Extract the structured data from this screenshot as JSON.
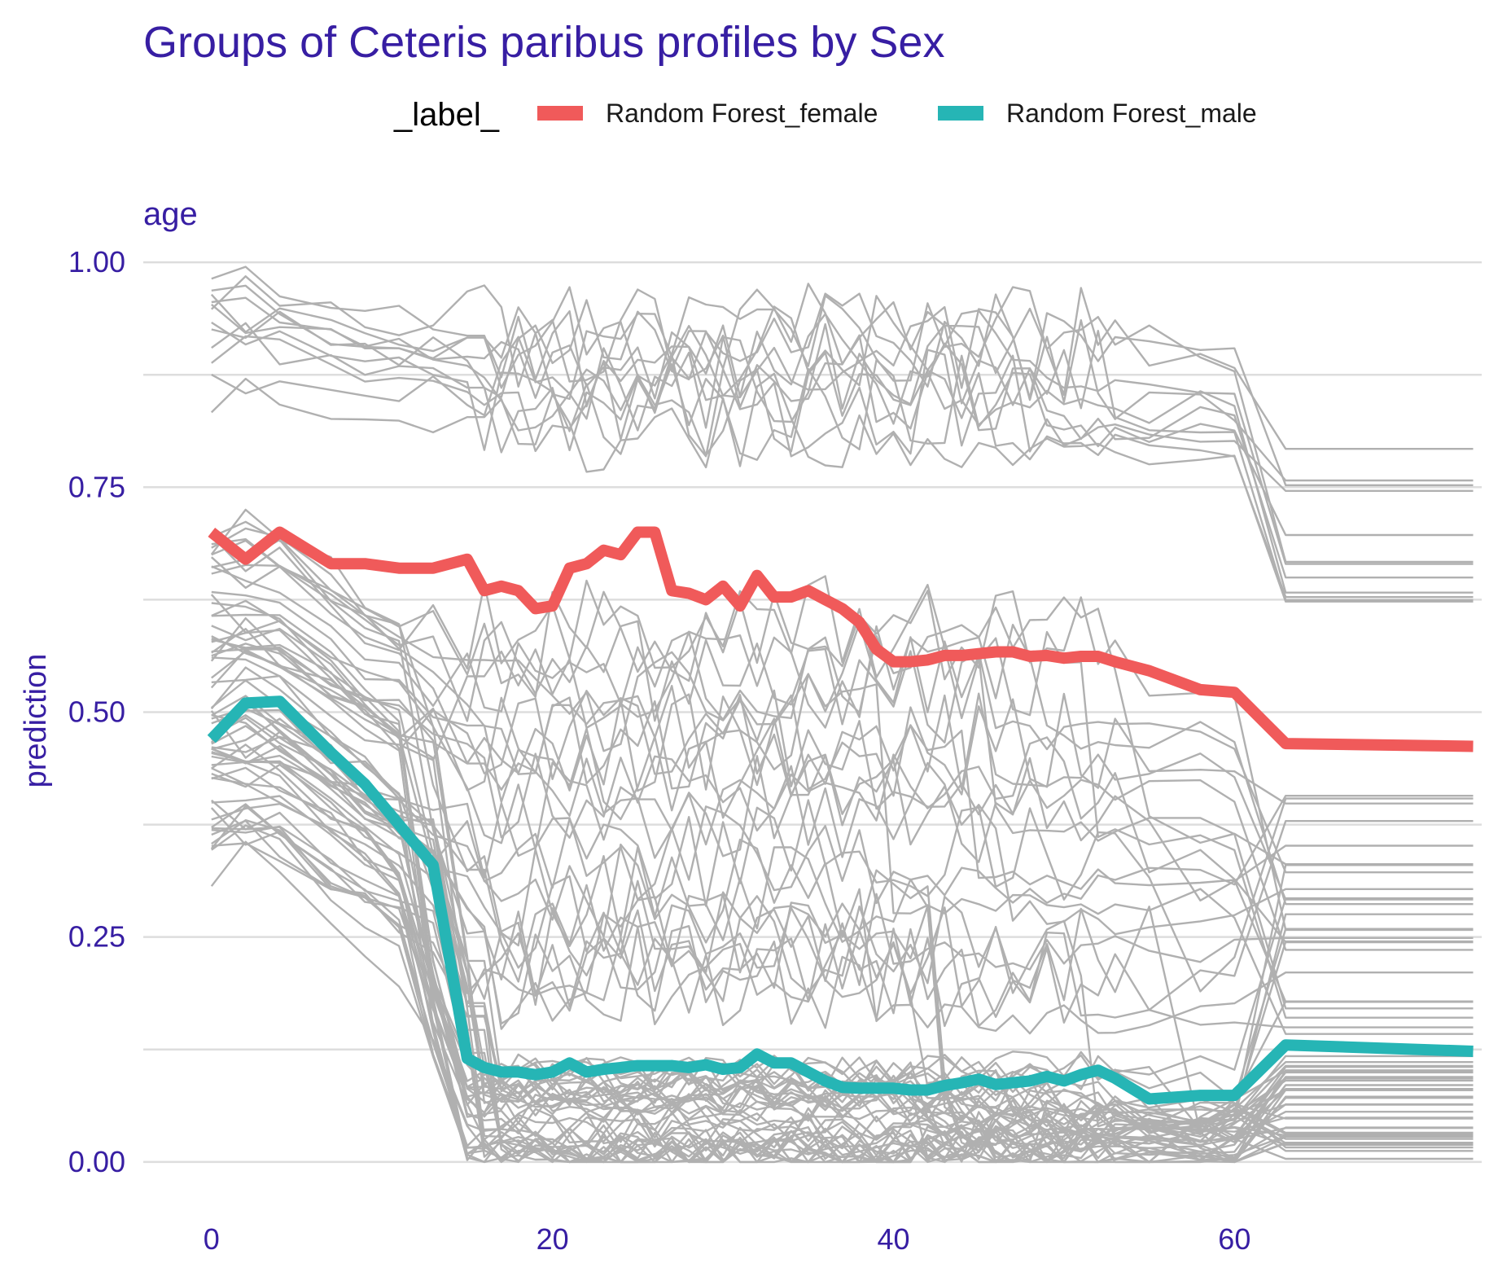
{
  "chart_data": {
    "type": "line",
    "title": "Groups of Ceteris paribus profiles by Sex",
    "facet_label": "age",
    "xlabel": "",
    "ylabel": "prediction",
    "legend": {
      "title": "_label_",
      "placement": "top",
      "entries": [
        "Random Forest_female",
        "Random Forest_male"
      ]
    },
    "xlim": [
      -4,
      74.5
    ],
    "ylim": [
      -0.03,
      1.02
    ],
    "xticks": [
      0,
      20,
      40,
      60
    ],
    "yticks": [
      0.0,
      0.25,
      0.5,
      0.75,
      1.0
    ],
    "ytick_labels": [
      "0.00",
      "0.25",
      "0.50",
      "0.75",
      "1.00"
    ],
    "grid": true,
    "colors": {
      "title": "#371ea3",
      "axis_text": "#371ea3",
      "grid": "#dddddd",
      "background_profiles": "#b0b0b0",
      "female": "#f05a5a",
      "male": "#26b5b5"
    },
    "series": [
      {
        "name": "Random Forest_female",
        "x": [
          0,
          2,
          4,
          7,
          9,
          11,
          13,
          15,
          16,
          17,
          18,
          19,
          20,
          21,
          22,
          23,
          24,
          25,
          26,
          27,
          28,
          29,
          30,
          31,
          32,
          33,
          34,
          35,
          36,
          37,
          38,
          39,
          40,
          41,
          42,
          43,
          44,
          45,
          46,
          47,
          48,
          49,
          50,
          51,
          52,
          53,
          55,
          58,
          60,
          63,
          74
        ],
        "values": [
          0.7,
          0.67,
          0.7,
          0.665,
          0.665,
          0.66,
          0.66,
          0.67,
          0.635,
          0.64,
          0.635,
          0.615,
          0.618,
          0.66,
          0.665,
          0.68,
          0.675,
          0.7,
          0.7,
          0.635,
          0.632,
          0.625,
          0.64,
          0.618,
          0.652,
          0.628,
          0.628,
          0.635,
          0.625,
          0.615,
          0.6,
          0.57,
          0.556,
          0.556,
          0.558,
          0.563,
          0.563,
          0.565,
          0.567,
          0.567,
          0.562,
          0.563,
          0.56,
          0.562,
          0.562,
          0.556,
          0.546,
          0.525,
          0.522,
          0.465,
          0.462
        ]
      },
      {
        "name": "Random Forest_male",
        "x": [
          0,
          2,
          4,
          7,
          9,
          11,
          13,
          15,
          16,
          17,
          18,
          19,
          20,
          21,
          22,
          23,
          24,
          25,
          26,
          27,
          28,
          29,
          30,
          31,
          32,
          33,
          34,
          35,
          36,
          37,
          38,
          39,
          40,
          41,
          42,
          43,
          44,
          45,
          46,
          47,
          48,
          49,
          50,
          51,
          52,
          53,
          55,
          58,
          60,
          63,
          74
        ],
        "values": [
          0.47,
          0.51,
          0.512,
          0.455,
          0.42,
          0.375,
          0.33,
          0.115,
          0.105,
          0.1,
          0.1,
          0.097,
          0.1,
          0.11,
          0.1,
          0.103,
          0.105,
          0.107,
          0.107,
          0.107,
          0.105,
          0.108,
          0.103,
          0.105,
          0.12,
          0.11,
          0.11,
          0.1,
          0.09,
          0.083,
          0.082,
          0.082,
          0.082,
          0.08,
          0.08,
          0.085,
          0.088,
          0.092,
          0.086,
          0.088,
          0.09,
          0.095,
          0.09,
          0.097,
          0.102,
          0.093,
          0.07,
          0.074,
          0.074,
          0.13,
          0.123
        ]
      }
    ]
  }
}
